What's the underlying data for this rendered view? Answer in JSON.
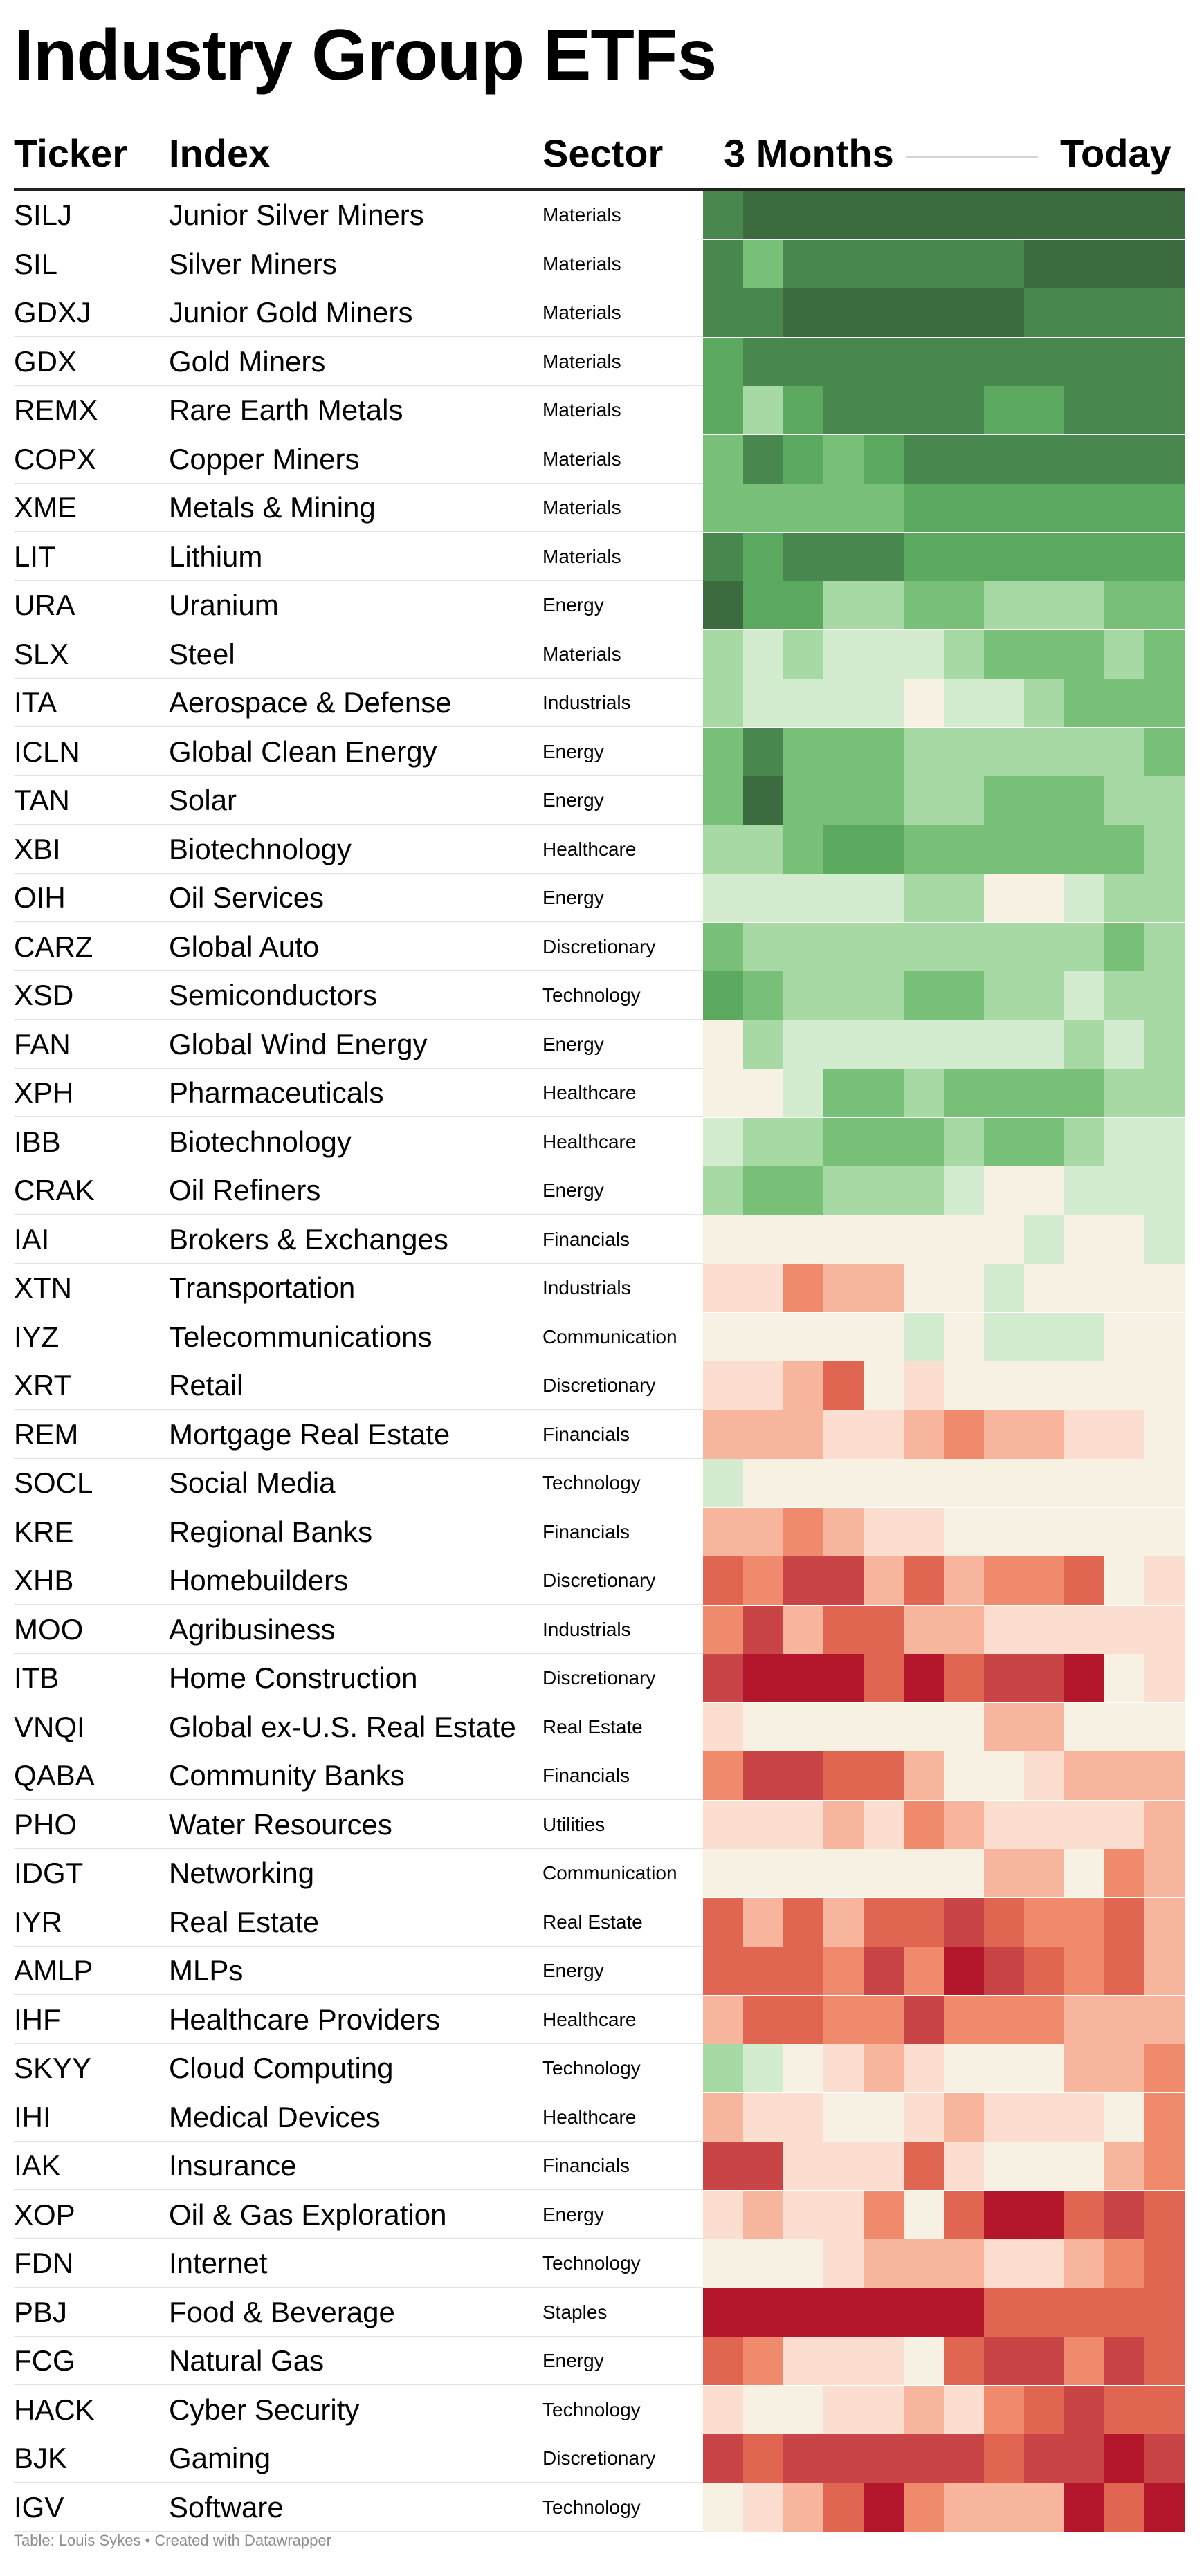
{
  "title": "Industry Group ETFs",
  "header": {
    "ticker": "Ticker",
    "index": "Index",
    "sector": "Sector",
    "start": "3 Months",
    "end": "Today"
  },
  "footer": "Table: Louis Sykes • Created with Datawrapper",
  "colors": {
    "g5": "#3c6b3f",
    "g4": "#48874d",
    "g3": "#5ba95f",
    "g2": "#78c078",
    "g1": "#a6d9a4",
    "g0": "#d3ecd0",
    "n": "#f6f1e2",
    "r0": "#fbded0",
    "r1": "#f7b59e",
    "r2": "#ef8a6c",
    "r3": "#e06651",
    "r4": "#c94447",
    "r5": "#b4162c"
  },
  "chart_data": {
    "type": "heatmap",
    "columns": 12,
    "rows": [
      {
        "ticker": "SILJ",
        "index": "Junior Silver Miners",
        "sector": "Materials",
        "cells": [
          "g4",
          "g5",
          "g5",
          "g5",
          "g5",
          "g5",
          "g5",
          "g5",
          "g5",
          "g5",
          "g5",
          "g5"
        ]
      },
      {
        "ticker": "SIL",
        "index": "Silver Miners",
        "sector": "Materials",
        "cells": [
          "g4",
          "g2",
          "g4",
          "g4",
          "g4",
          "g4",
          "g4",
          "g4",
          "g5",
          "g5",
          "g5",
          "g5"
        ]
      },
      {
        "ticker": "GDXJ",
        "index": "Junior Gold Miners",
        "sector": "Materials",
        "cells": [
          "g4",
          "g4",
          "g5",
          "g5",
          "g5",
          "g5",
          "g5",
          "g5",
          "g4",
          "g4",
          "g4",
          "g4"
        ]
      },
      {
        "ticker": "GDX",
        "index": "Gold Miners",
        "sector": "Materials",
        "cells": [
          "g3",
          "g4",
          "g4",
          "g4",
          "g4",
          "g4",
          "g4",
          "g4",
          "g4",
          "g4",
          "g4",
          "g4"
        ]
      },
      {
        "ticker": "REMX",
        "index": "Rare Earth Metals",
        "sector": "Materials",
        "cells": [
          "g3",
          "g1",
          "g3",
          "g4",
          "g4",
          "g4",
          "g4",
          "g3",
          "g3",
          "g4",
          "g4",
          "g4"
        ]
      },
      {
        "ticker": "COPX",
        "index": "Copper Miners",
        "sector": "Materials",
        "cells": [
          "g2",
          "g4",
          "g3",
          "g2",
          "g3",
          "g4",
          "g4",
          "g4",
          "g4",
          "g4",
          "g4",
          "g4"
        ]
      },
      {
        "ticker": "XME",
        "index": "Metals & Mining",
        "sector": "Materials",
        "cells": [
          "g2",
          "g2",
          "g2",
          "g2",
          "g2",
          "g3",
          "g3",
          "g3",
          "g3",
          "g3",
          "g3",
          "g3"
        ]
      },
      {
        "ticker": "LIT",
        "index": "Lithium",
        "sector": "Materials",
        "cells": [
          "g4",
          "g3",
          "g4",
          "g4",
          "g4",
          "g3",
          "g3",
          "g3",
          "g3",
          "g3",
          "g3",
          "g3"
        ]
      },
      {
        "ticker": "URA",
        "index": "Uranium",
        "sector": "Energy",
        "cells": [
          "g5",
          "g3",
          "g3",
          "g1",
          "g1",
          "g2",
          "g2",
          "g1",
          "g1",
          "g1",
          "g2",
          "g2"
        ]
      },
      {
        "ticker": "SLX",
        "index": "Steel",
        "sector": "Materials",
        "cells": [
          "g1",
          "g0",
          "g1",
          "g0",
          "g0",
          "g0",
          "g1",
          "g2",
          "g2",
          "g2",
          "g1",
          "g2"
        ]
      },
      {
        "ticker": "ITA",
        "index": "Aerospace & Defense",
        "sector": "Industrials",
        "cells": [
          "g1",
          "g0",
          "g0",
          "g0",
          "g0",
          "n",
          "g0",
          "g0",
          "g1",
          "g2",
          "g2",
          "g2"
        ]
      },
      {
        "ticker": "ICLN",
        "index": "Global Clean Energy",
        "sector": "Energy",
        "cells": [
          "g2",
          "g4",
          "g2",
          "g2",
          "g2",
          "g1",
          "g1",
          "g1",
          "g1",
          "g1",
          "g1",
          "g2"
        ]
      },
      {
        "ticker": "TAN",
        "index": "Solar",
        "sector": "Energy",
        "cells": [
          "g2",
          "g5",
          "g2",
          "g2",
          "g2",
          "g1",
          "g1",
          "g2",
          "g2",
          "g2",
          "g1",
          "g1"
        ]
      },
      {
        "ticker": "XBI",
        "index": "Biotechnology",
        "sector": "Healthcare",
        "cells": [
          "g1",
          "g1",
          "g2",
          "g3",
          "g3",
          "g2",
          "g2",
          "g2",
          "g2",
          "g2",
          "g2",
          "g1"
        ]
      },
      {
        "ticker": "OIH",
        "index": "Oil Services",
        "sector": "Energy",
        "cells": [
          "g0",
          "g0",
          "g0",
          "g0",
          "g0",
          "g1",
          "g1",
          "n",
          "n",
          "g0",
          "g1",
          "g1"
        ]
      },
      {
        "ticker": "CARZ",
        "index": "Global Auto",
        "sector": "Discretionary",
        "cells": [
          "g2",
          "g1",
          "g1",
          "g1",
          "g1",
          "g1",
          "g1",
          "g1",
          "g1",
          "g1",
          "g2",
          "g1"
        ]
      },
      {
        "ticker": "XSD",
        "index": "Semiconductors",
        "sector": "Technology",
        "cells": [
          "g3",
          "g2",
          "g1",
          "g1",
          "g1",
          "g2",
          "g2",
          "g1",
          "g1",
          "g0",
          "g1",
          "g1"
        ]
      },
      {
        "ticker": "FAN",
        "index": "Global Wind Energy",
        "sector": "Energy",
        "cells": [
          "n",
          "g1",
          "g0",
          "g0",
          "g0",
          "g0",
          "g0",
          "g0",
          "g0",
          "g1",
          "g0",
          "g1"
        ]
      },
      {
        "ticker": "XPH",
        "index": "Pharmaceuticals",
        "sector": "Healthcare",
        "cells": [
          "n",
          "n",
          "g0",
          "g2",
          "g2",
          "g1",
          "g2",
          "g2",
          "g2",
          "g2",
          "g1",
          "g1"
        ]
      },
      {
        "ticker": "IBB",
        "index": "Biotechnology",
        "sector": "Healthcare",
        "cells": [
          "g0",
          "g1",
          "g1",
          "g2",
          "g2",
          "g2",
          "g1",
          "g2",
          "g2",
          "g1",
          "g0",
          "g0"
        ]
      },
      {
        "ticker": "CRAK",
        "index": "Oil Refiners",
        "sector": "Energy",
        "cells": [
          "g1",
          "g2",
          "g2",
          "g1",
          "g1",
          "g1",
          "g0",
          "n",
          "n",
          "g0",
          "g0",
          "g0"
        ]
      },
      {
        "ticker": "IAI",
        "index": "Brokers & Exchanges",
        "sector": "Financials",
        "cells": [
          "n",
          "n",
          "n",
          "n",
          "n",
          "n",
          "n",
          "n",
          "g0",
          "n",
          "n",
          "g0"
        ]
      },
      {
        "ticker": "XTN",
        "index": "Transportation",
        "sector": "Industrials",
        "cells": [
          "r0",
          "r0",
          "r2",
          "r1",
          "r1",
          "n",
          "n",
          "g0",
          "n",
          "n",
          "n",
          "n"
        ]
      },
      {
        "ticker": "IYZ",
        "index": "Telecommunications",
        "sector": "Communication",
        "cells": [
          "n",
          "n",
          "n",
          "n",
          "n",
          "g0",
          "n",
          "g0",
          "g0",
          "g0",
          "n",
          "n"
        ]
      },
      {
        "ticker": "XRT",
        "index": "Retail",
        "sector": "Discretionary",
        "cells": [
          "r0",
          "r0",
          "r1",
          "r3",
          "n",
          "r0",
          "n",
          "n",
          "n",
          "n",
          "n",
          "n"
        ]
      },
      {
        "ticker": "REM",
        "index": "Mortgage Real Estate",
        "sector": "Financials",
        "cells": [
          "r1",
          "r1",
          "r1",
          "r0",
          "r0",
          "r1",
          "r2",
          "r1",
          "r1",
          "r0",
          "r0",
          "n"
        ]
      },
      {
        "ticker": "SOCL",
        "index": "Social Media",
        "sector": "Technology",
        "cells": [
          "g0",
          "n",
          "n",
          "n",
          "n",
          "n",
          "n",
          "n",
          "n",
          "n",
          "n",
          "n"
        ]
      },
      {
        "ticker": "KRE",
        "index": "Regional Banks",
        "sector": "Financials",
        "cells": [
          "r1",
          "r1",
          "r2",
          "r1",
          "r0",
          "r0",
          "n",
          "n",
          "n",
          "n",
          "n",
          "n"
        ]
      },
      {
        "ticker": "XHB",
        "index": "Homebuilders",
        "sector": "Discretionary",
        "cells": [
          "r3",
          "r2",
          "r4",
          "r4",
          "r1",
          "r3",
          "r1",
          "r2",
          "r2",
          "r3",
          "n",
          "r0"
        ]
      },
      {
        "ticker": "MOO",
        "index": "Agribusiness",
        "sector": "Industrials",
        "cells": [
          "r2",
          "r4",
          "r1",
          "r3",
          "r3",
          "r1",
          "r1",
          "r0",
          "r0",
          "r0",
          "r0",
          "r0"
        ]
      },
      {
        "ticker": "ITB",
        "index": "Home Construction",
        "sector": "Discretionary",
        "cells": [
          "r4",
          "r5",
          "r5",
          "r5",
          "r3",
          "r5",
          "r3",
          "r4",
          "r4",
          "r5",
          "n",
          "r0"
        ]
      },
      {
        "ticker": "VNQI",
        "index": "Global ex-U.S. Real Estate",
        "sector": "Real Estate",
        "cells": [
          "r0",
          "n",
          "n",
          "n",
          "n",
          "n",
          "n",
          "r1",
          "r1",
          "n",
          "n",
          "n"
        ]
      },
      {
        "ticker": "QABA",
        "index": "Community Banks",
        "sector": "Financials",
        "cells": [
          "r2",
          "r4",
          "r4",
          "r3",
          "r3",
          "r1",
          "n",
          "n",
          "r0",
          "r1",
          "r1",
          "r1"
        ]
      },
      {
        "ticker": "PHO",
        "index": "Water Resources",
        "sector": "Utilities",
        "cells": [
          "r0",
          "r0",
          "r0",
          "r1",
          "r0",
          "r2",
          "r1",
          "r0",
          "r0",
          "r0",
          "r0",
          "r1"
        ]
      },
      {
        "ticker": "IDGT",
        "index": "Networking",
        "sector": "Communication",
        "cells": [
          "n",
          "n",
          "n",
          "n",
          "n",
          "n",
          "n",
          "r1",
          "r1",
          "n",
          "r2",
          "r1"
        ]
      },
      {
        "ticker": "IYR",
        "index": "Real Estate",
        "sector": "Real Estate",
        "cells": [
          "r3",
          "r1",
          "r3",
          "r1",
          "r3",
          "r3",
          "r4",
          "r3",
          "r2",
          "r2",
          "r3",
          "r1"
        ]
      },
      {
        "ticker": "AMLP",
        "index": "MLPs",
        "sector": "Energy",
        "cells": [
          "r3",
          "r3",
          "r3",
          "r2",
          "r4",
          "r2",
          "r5",
          "r4",
          "r3",
          "r2",
          "r3",
          "r1"
        ]
      },
      {
        "ticker": "IHF",
        "index": "Healthcare Providers",
        "sector": "Healthcare",
        "cells": [
          "r1",
          "r3",
          "r3",
          "r2",
          "r2",
          "r4",
          "r2",
          "r2",
          "r2",
          "r1",
          "r1",
          "r1"
        ]
      },
      {
        "ticker": "SKYY",
        "index": "Cloud Computing",
        "sector": "Technology",
        "cells": [
          "g1",
          "g0",
          "n",
          "r0",
          "r1",
          "r0",
          "n",
          "n",
          "n",
          "r1",
          "r1",
          "r2"
        ]
      },
      {
        "ticker": "IHI",
        "index": "Medical Devices",
        "sector": "Healthcare",
        "cells": [
          "r1",
          "r0",
          "r0",
          "n",
          "n",
          "r0",
          "r1",
          "r0",
          "r0",
          "r0",
          "n",
          "r2"
        ]
      },
      {
        "ticker": "IAK",
        "index": "Insurance",
        "sector": "Financials",
        "cells": [
          "r4",
          "r4",
          "r0",
          "r0",
          "r0",
          "r3",
          "r0",
          "n",
          "n",
          "n",
          "r1",
          "r2"
        ]
      },
      {
        "ticker": "XOP",
        "index": "Oil & Gas Exploration",
        "sector": "Energy",
        "cells": [
          "r0",
          "r1",
          "r0",
          "r0",
          "r2",
          "n",
          "r3",
          "r5",
          "r5",
          "r3",
          "r4",
          "r3"
        ]
      },
      {
        "ticker": "FDN",
        "index": "Internet",
        "sector": "Technology",
        "cells": [
          "n",
          "n",
          "n",
          "r0",
          "r1",
          "r1",
          "r1",
          "r0",
          "r0",
          "r1",
          "r2",
          "r3"
        ]
      },
      {
        "ticker": "PBJ",
        "index": "Food & Beverage",
        "sector": "Staples",
        "cells": [
          "r5",
          "r5",
          "r5",
          "r5",
          "r5",
          "r5",
          "r5",
          "r3",
          "r3",
          "r3",
          "r3",
          "r3"
        ]
      },
      {
        "ticker": "FCG",
        "index": "Natural Gas",
        "sector": "Energy",
        "cells": [
          "r3",
          "r2",
          "r0",
          "r0",
          "r0",
          "n",
          "r3",
          "r4",
          "r4",
          "r2",
          "r4",
          "r3"
        ]
      },
      {
        "ticker": "HACK",
        "index": "Cyber Security",
        "sector": "Technology",
        "cells": [
          "r0",
          "n",
          "n",
          "r0",
          "r0",
          "r1",
          "r0",
          "r2",
          "r3",
          "r4",
          "r3",
          "r3"
        ]
      },
      {
        "ticker": "BJK",
        "index": "Gaming",
        "sector": "Discretionary",
        "cells": [
          "r4",
          "r3",
          "r4",
          "r4",
          "r4",
          "r4",
          "r4",
          "r3",
          "r4",
          "r4",
          "r5",
          "r4"
        ]
      },
      {
        "ticker": "IGV",
        "index": "Software",
        "sector": "Technology",
        "cells": [
          "n",
          "r0",
          "r1",
          "r3",
          "r5",
          "r2",
          "r1",
          "r1",
          "r1",
          "r5",
          "r3",
          "r5"
        ]
      }
    ]
  }
}
